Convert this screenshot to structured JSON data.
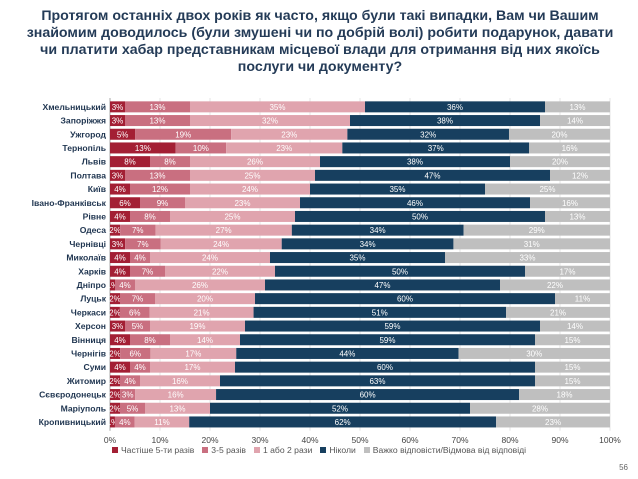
{
  "title": "Протягом останніх двох років як часто, якщо були такі випадки, Вам чи Вашим знайомим доводилось (були змушені чи по добрій волі) робити подарунок, давати чи платити хабар представникам місцевої влади для отримання від них якоїсь послуги чи документу?",
  "page_number": "56",
  "chart_data": {
    "type": "bar",
    "orientation": "horizontal",
    "stacked": "100%",
    "xlim": [
      0,
      100
    ],
    "x_ticks": [
      "0%",
      "10%",
      "20%",
      "30%",
      "40%",
      "50%",
      "60%",
      "70%",
      "80%",
      "90%",
      "100%"
    ],
    "grid": true,
    "legend_position": "bottom",
    "categories": [
      "Хмельницький",
      "Запоріжжя",
      "Ужгород",
      "Тернопіль",
      "Львів",
      "Полтава",
      "Київ",
      "Івано-Франківськ",
      "Рівне",
      "Одеса",
      "Чернівці",
      "Миколаїв",
      "Харків",
      "Дніпро",
      "Луцьк",
      "Черкаси",
      "Херсон",
      "Вінниця",
      "Чернігів",
      "Суми",
      "Житомир",
      "Сєвєродонецьк",
      "Маріуполь",
      "Кропивницький"
    ],
    "series": [
      {
        "name": "Частіше 5-ти разів",
        "color": "#a31f34",
        "values": [
          3,
          3,
          5,
          13,
          8,
          3,
          4,
          6,
          4,
          2,
          3,
          4,
          4,
          1,
          2,
          2,
          3,
          4,
          2,
          4,
          2,
          2,
          2,
          1
        ]
      },
      {
        "name": "3-5 разів",
        "color": "#c96f80",
        "values": [
          13,
          13,
          19,
          10,
          8,
          13,
          12,
          9,
          8,
          7,
          7,
          4,
          7,
          4,
          7,
          6,
          5,
          8,
          6,
          4,
          4,
          3,
          5,
          4
        ]
      },
      {
        "name": "1 або 2 рази",
        "color": "#e0a4ae",
        "values": [
          35,
          32,
          23,
          23,
          26,
          25,
          24,
          23,
          25,
          27,
          24,
          24,
          22,
          26,
          20,
          21,
          19,
          14,
          17,
          17,
          16,
          16,
          13,
          11
        ]
      },
      {
        "name": "Ніколи",
        "color": "#173f5f",
        "values": [
          36,
          38,
          32,
          37,
          38,
          47,
          35,
          46,
          50,
          34,
          34,
          35,
          50,
          47,
          60,
          51,
          59,
          59,
          44,
          60,
          63,
          60,
          52,
          62
        ]
      },
      {
        "name": "Важко відповісти/Відмова від відповіді",
        "color": "#bfbfbf",
        "values": [
          13,
          14,
          20,
          16,
          20,
          12,
          25,
          16,
          13,
          29,
          31,
          33,
          17,
          22,
          11,
          21,
          14,
          15,
          30,
          15,
          15,
          18,
          28,
          23
        ]
      }
    ]
  }
}
